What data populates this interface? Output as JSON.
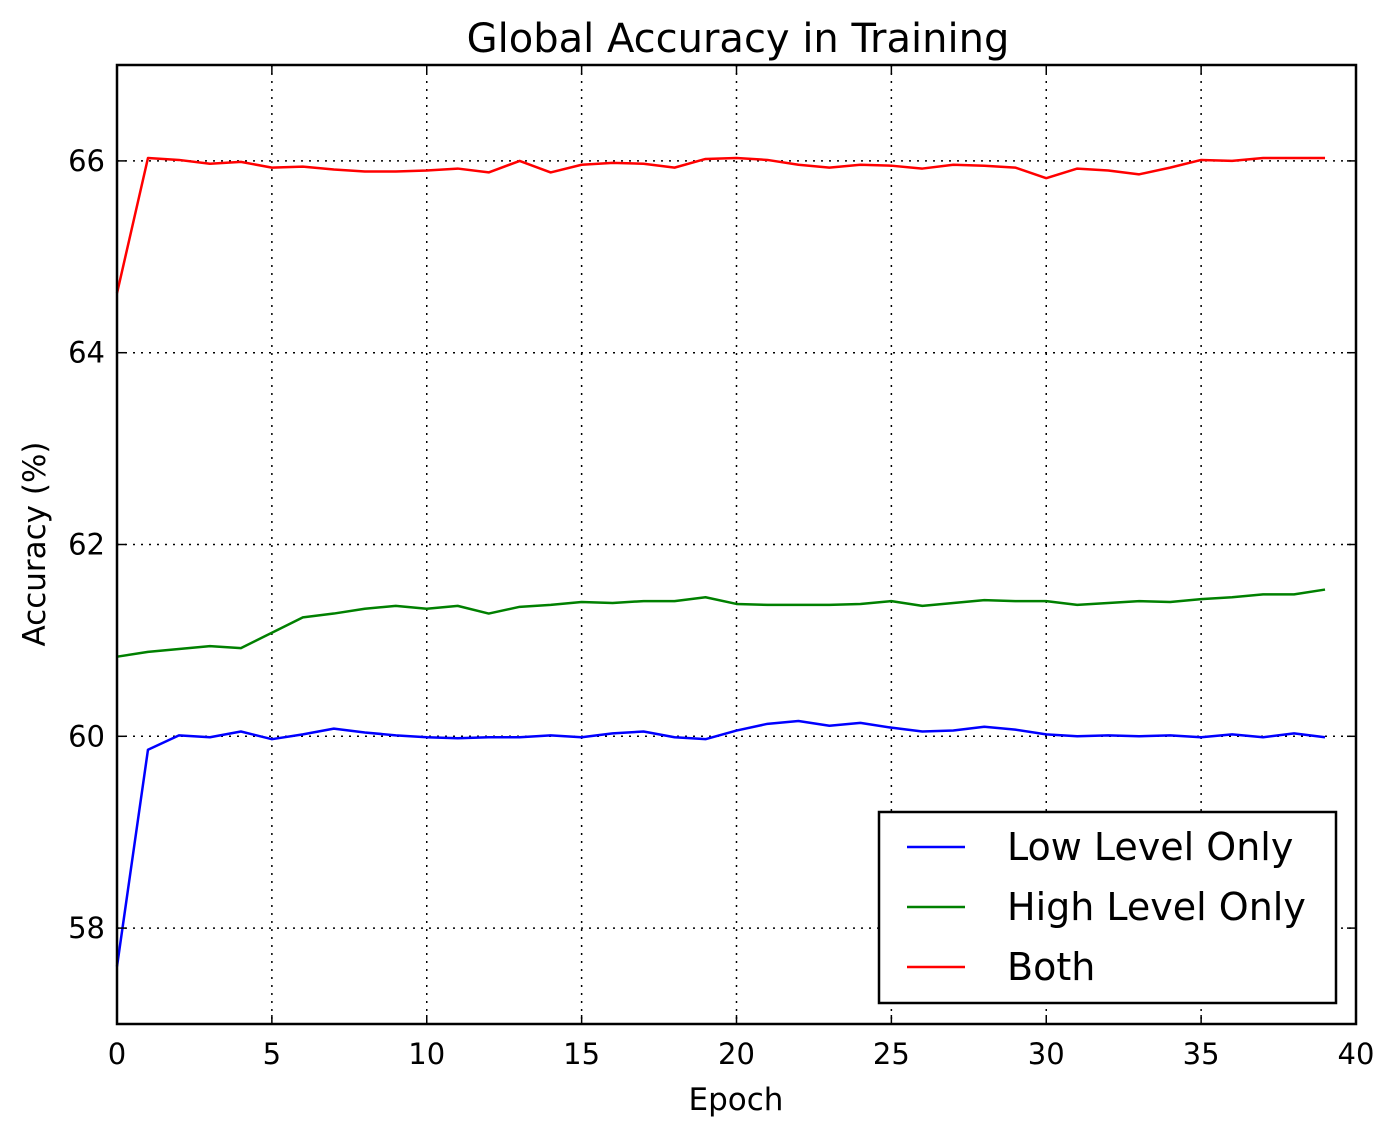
{
  "chart_data": {
    "type": "line",
    "title": "Global Accuracy in Training",
    "xlabel": "Epoch",
    "ylabel": "Accuracy (%)",
    "xlim": [
      0,
      40
    ],
    "ylim": [
      57,
      67
    ],
    "xticks": [
      0,
      5,
      10,
      15,
      20,
      25,
      30,
      35,
      40
    ],
    "yticks": [
      58,
      60,
      62,
      64,
      66
    ],
    "grid": true,
    "legend_position": "lower-right",
    "x": [
      0,
      1,
      2,
      3,
      4,
      5,
      6,
      7,
      8,
      9,
      10,
      11,
      12,
      13,
      14,
      15,
      16,
      17,
      18,
      19,
      20,
      21,
      22,
      23,
      24,
      25,
      26,
      27,
      28,
      29,
      30,
      31,
      32,
      33,
      34,
      35,
      36,
      37,
      38,
      39
    ],
    "series": [
      {
        "name": "Low Level Only",
        "color": "#0000ff",
        "values": [
          57.6,
          59.86,
          60.01,
          59.99,
          60.05,
          59.97,
          60.02,
          60.08,
          60.04,
          60.01,
          59.99,
          59.98,
          59.99,
          59.99,
          60.01,
          59.99,
          60.03,
          60.05,
          59.99,
          59.97,
          60.06,
          60.13,
          60.16,
          60.11,
          60.14,
          60.09,
          60.05,
          60.06,
          60.1,
          60.07,
          60.02,
          60.0,
          60.01,
          60.0,
          60.01,
          59.99,
          60.02,
          59.99,
          60.03,
          59.99
        ]
      },
      {
        "name": "High Level Only",
        "color": "#008000",
        "values": [
          60.83,
          60.88,
          60.91,
          60.94,
          60.92,
          61.08,
          61.24,
          61.28,
          61.33,
          61.36,
          61.33,
          61.36,
          61.28,
          61.35,
          61.37,
          61.4,
          61.39,
          61.41,
          61.41,
          61.45,
          61.38,
          61.37,
          61.37,
          61.37,
          61.38,
          61.41,
          61.36,
          61.39,
          61.42,
          61.41,
          61.41,
          61.37,
          61.39,
          61.41,
          61.4,
          61.43,
          61.45,
          61.48,
          61.48,
          61.53
        ]
      },
      {
        "name": "Both",
        "color": "#ff0000",
        "values": [
          64.62,
          66.03,
          66.01,
          65.97,
          65.99,
          65.93,
          65.94,
          65.91,
          65.89,
          65.89,
          65.9,
          65.92,
          65.88,
          66.0,
          65.88,
          65.96,
          65.98,
          65.97,
          65.93,
          66.02,
          66.03,
          66.01,
          65.96,
          65.93,
          65.96,
          65.95,
          65.92,
          65.96,
          65.95,
          65.93,
          65.82,
          65.92,
          65.9,
          65.86,
          65.93,
          66.01,
          66.0,
          66.03,
          66.03,
          66.03
        ]
      }
    ]
  }
}
